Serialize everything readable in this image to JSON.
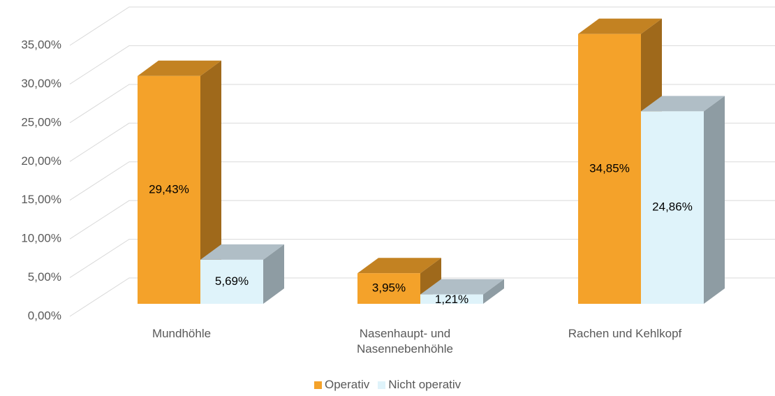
{
  "chart_data": {
    "type": "bar3d",
    "categories": [
      "Mundhöhle",
      "Nasenhaupt- und Nasennebenhöhle",
      "Rachen und Kehlkopf"
    ],
    "series": [
      {
        "name": "Operativ",
        "color": "#F4A22A",
        "values": [
          29.43,
          3.95,
          34.85
        ],
        "value_labels": [
          "29,43%",
          "3,95%",
          "34,85%"
        ]
      },
      {
        "name": "Nicht operativ",
        "color": "#DFF3FA",
        "values": [
          5.69,
          1.21,
          24.86
        ],
        "value_labels": [
          "5,69%",
          "1,21%",
          "24,86%"
        ]
      }
    ],
    "ylim": [
      0,
      35
    ],
    "yticks": [
      {
        "value": 0,
        "label": "0,00%"
      },
      {
        "value": 5,
        "label": "5,00%"
      },
      {
        "value": 10,
        "label": "10,00%"
      },
      {
        "value": 15,
        "label": "15,00%"
      },
      {
        "value": 20,
        "label": "20,00%"
      },
      {
        "value": 25,
        "label": "25,00%"
      },
      {
        "value": 30,
        "label": "30,00%"
      },
      {
        "value": 35,
        "label": "35,00%"
      }
    ],
    "grid": true,
    "legend": "bottom"
  }
}
